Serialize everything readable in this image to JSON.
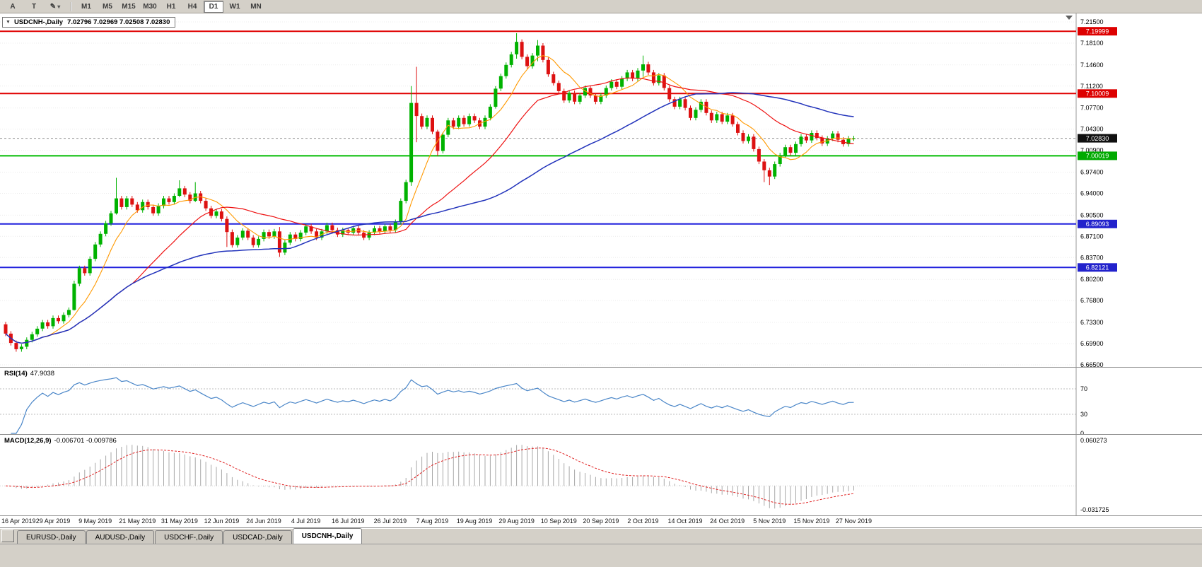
{
  "toolbar": {
    "buttons_left": [
      {
        "name": "cursor",
        "label": "A"
      },
      {
        "name": "crosshair",
        "label": "T"
      },
      {
        "name": "draw-tools",
        "label": "✎",
        "caret": "▾"
      }
    ],
    "timeframes": [
      "M1",
      "M5",
      "M15",
      "M30",
      "H1",
      "H4",
      "D1",
      "W1",
      "MN"
    ],
    "active_timeframe": "D1"
  },
  "chart": {
    "symbol_title": "USDCNH-,Daily",
    "collapse_arrow": "▼",
    "ohlc_text": "7.02796 7.02969 7.02508 7.02830",
    "price_axis_labels": [
      "7.21500",
      "7.18100",
      "7.14600",
      "7.11200",
      "7.07700",
      "7.04300",
      "7.00900",
      "6.97400",
      "6.94000",
      "6.90500",
      "6.87100",
      "6.83700",
      "6.80200",
      "6.76800",
      "6.73300",
      "6.69900",
      "6.66500"
    ],
    "price_tags": [
      {
        "label": "7.19999",
        "price": 7.19999,
        "bg": "#dd0000",
        "fg": "#ffffff",
        "line": "solid",
        "line_color": "#e00000",
        "line_width": 2
      },
      {
        "label": "7.10009",
        "price": 7.10009,
        "bg": "#dd0000",
        "fg": "#ffffff",
        "line": "solid",
        "line_color": "#e00000",
        "line_width": 2
      },
      {
        "label": "7.02830",
        "price": 7.0283,
        "bg": "#101010",
        "fg": "#ffffff",
        "line": "dashed",
        "line_color": "#909090",
        "line_width": 1
      },
      {
        "label": "7.00019",
        "price": 7.00019,
        "bg": "#00aa00",
        "fg": "#ffffff",
        "line": "solid",
        "line_color": "#00bb00",
        "line_width": 2
      },
      {
        "label": "6.89093",
        "price": 6.89093,
        "bg": "#2222cc",
        "fg": "#ffffff",
        "line": "solid",
        "line_color": "#2020dd",
        "line_width": 2
      },
      {
        "label": "6.82121",
        "price": 6.82121,
        "bg": "#2222cc",
        "fg": "#ffffff",
        "line": "solid",
        "line_color": "#2020dd",
        "line_width": 2
      }
    ]
  },
  "chart_data": {
    "type": "candlestick",
    "symbol": "USDCNH",
    "timeframe": "Daily",
    "y_range": [
      6.665,
      7.215
    ],
    "x_labels": [
      "16 Apr 2019",
      "29 Apr 2019",
      "9 May 2019",
      "21 May 2019",
      "31 May 2019",
      "12 Jun 2019",
      "24 Jun 2019",
      "4 Jul 2019",
      "16 Jul 2019",
      "26 Jul 2019",
      "7 Aug 2019",
      "19 Aug 2019",
      "29 Aug 2019",
      "10 Sep 2019",
      "20 Sep 2019",
      "2 Oct 2019",
      "14 Oct 2019",
      "24 Oct 2019",
      "5 Nov 2019",
      "15 Nov 2019",
      "27 Nov 2019"
    ],
    "x_label_bar_indices": [
      0,
      9,
      17,
      25,
      33,
      41,
      49,
      57,
      65,
      73,
      81,
      89,
      97,
      105,
      113,
      121,
      129,
      137,
      145,
      153,
      161
    ],
    "first_open": 6.73,
    "closes": [
      6.715,
      6.7,
      6.69,
      6.694,
      6.705,
      6.714,
      6.723,
      6.733,
      6.727,
      6.74,
      6.735,
      6.745,
      6.753,
      6.795,
      6.82,
      6.812,
      6.835,
      6.858,
      6.875,
      6.892,
      6.908,
      6.932,
      6.918,
      6.932,
      6.922,
      6.913,
      6.926,
      6.918,
      6.908,
      6.92,
      6.932,
      6.926,
      6.936,
      6.948,
      6.938,
      6.928,
      6.94,
      6.928,
      6.916,
      6.904,
      6.911,
      6.899,
      6.878,
      6.857,
      6.869,
      6.88,
      6.869,
      6.857,
      6.867,
      6.878,
      6.871,
      6.879,
      6.845,
      6.861,
      6.874,
      6.867,
      6.877,
      6.887,
      6.879,
      6.869,
      6.879,
      6.889,
      6.881,
      6.874,
      6.881,
      6.877,
      6.884,
      6.877,
      6.869,
      6.877,
      6.884,
      6.879,
      6.887,
      6.881,
      6.894,
      6.928,
      6.958,
      7.085,
      7.064,
      7.047,
      7.061,
      7.039,
      7.008,
      7.034,
      7.057,
      7.047,
      7.061,
      7.051,
      7.064,
      7.057,
      7.047,
      7.061,
      7.079,
      7.108,
      7.128,
      7.146,
      7.163,
      7.183,
      7.159,
      7.144,
      7.161,
      7.177,
      7.154,
      7.131,
      7.117,
      7.104,
      7.089,
      7.101,
      7.087,
      7.097,
      7.109,
      7.097,
      7.087,
      7.097,
      7.109,
      7.119,
      7.111,
      7.124,
      7.134,
      7.124,
      7.137,
      7.147,
      7.134,
      7.117,
      7.129,
      7.109,
      7.091,
      7.079,
      7.091,
      7.077,
      7.061,
      7.074,
      7.087,
      7.069,
      7.057,
      7.067,
      7.055,
      7.065,
      7.051,
      7.037,
      7.024,
      7.031,
      7.011,
      6.991,
      6.977,
      6.967,
      6.987,
      7.001,
      7.014,
      7.005,
      7.019,
      7.031,
      7.025,
      7.037,
      7.029,
      7.02,
      7.028,
      7.036,
      7.026,
      7.019,
      7.028,
      7.0283
    ],
    "wick_overrides": {
      "13": [
        6.8,
        6.752
      ],
      "21": [
        6.965,
        6.906
      ],
      "33": [
        6.961,
        6.934
      ],
      "36": [
        6.958,
        6.926
      ],
      "42": [
        6.903,
        6.854
      ],
      "52": [
        6.886,
        6.838
      ],
      "77": [
        7.112,
        6.952
      ],
      "78": [
        7.143,
        7.022
      ],
      "82": [
        7.042,
        7.0
      ],
      "93": [
        7.112,
        7.076
      ],
      "97": [
        7.197,
        7.156
      ],
      "101": [
        7.186,
        7.152
      ],
      "121": [
        7.161,
        7.127
      ],
      "144": [
        6.995,
        6.958
      ],
      "145": [
        6.981,
        6.953
      ]
    },
    "default_wick": 0.004,
    "up_color": "#00b200",
    "down_color": "#dd1111",
    "moving_averages": [
      {
        "period": 8,
        "color": "#ff9900",
        "width": 1.1
      },
      {
        "period": 25,
        "color": "#ee1111",
        "width": 1.2
      },
      {
        "period": 55,
        "color": "#2233bb",
        "width": 1.5
      }
    ]
  },
  "rsi": {
    "name_label": "RSI(14)",
    "value_label": "47.9038",
    "period": 14,
    "levels": [
      {
        "label": "70",
        "value": 70,
        "line": true
      },
      {
        "label": "30",
        "value": 30,
        "line": true
      },
      {
        "label": "0",
        "value": 0,
        "line": false
      }
    ],
    "line_color": "#4a86c8"
  },
  "macd": {
    "name_label": "MACD(12,26,9)",
    "value_label": "-0.006701 -0.009786",
    "fast": 12,
    "slow": 26,
    "signal": 9,
    "axis_max_label": "0.060273",
    "axis_min_label": "-0.031725",
    "axis_max": 0.060273,
    "axis_min": -0.031725,
    "hist_color": "#a8a8a8",
    "signal_color": "#e02020"
  },
  "tabs": {
    "items": [
      "EURUSD-,Daily",
      "AUDUSD-,Daily",
      "USDCHF-,Daily",
      "USDCAD-,Daily",
      "USDCNH-,Daily"
    ],
    "active": "USDCNH-,Daily"
  }
}
